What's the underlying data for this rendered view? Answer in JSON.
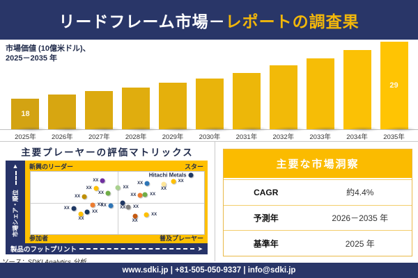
{
  "header": {
    "title_white": "リードフレーム市場－",
    "title_gold": "レポートの調査果"
  },
  "chart_data": [
    {
      "type": "bar",
      "title": "市場価値（10億米ドル）、2025－2035年",
      "subtitle_line1": "市場価値 (10億米ドル)、",
      "subtitle_line2": "2025－2035 年",
      "categories": [
        "2025年",
        "2026年",
        "2027年",
        "2028年",
        "2029年",
        "2030年",
        "2031年",
        "2032年",
        "2033年",
        "2034年",
        "2035年"
      ],
      "values": [
        18,
        18.8,
        19.5,
        20.1,
        21.1,
        21.9,
        23,
        24.4,
        25.8,
        27.4,
        29
      ],
      "bar_labels": [
        "18",
        "",
        "",
        "",
        "",
        "",
        "",
        "",
        "",
        "",
        "29"
      ],
      "labeled_values": {
        "2025年": 18,
        "2035年": 29
      },
      "ylabel": "市場価値 (10億米ドル)",
      "xlabel": "年",
      "grid": false,
      "legend": "none"
    },
    {
      "type": "scatter",
      "title": "主要プレーヤーの評価マトリックス",
      "x_axis": "製品のフットプリント",
      "y_axis": "市場シェア・順位",
      "quadrants": {
        "top_left": "新興のリーダー",
        "top_right": "スター",
        "bottom_left": "参加者",
        "bottom_right": "普及プレーヤー"
      },
      "highlight_company": "Hitachi Metals",
      "points": [
        {
          "x": 41.5,
          "y": 14.4,
          "color": "#7030A0",
          "label": "XX",
          "side": "left"
        },
        {
          "x": 37.6,
          "y": 26.7,
          "color": "#FFC000",
          "label": "XX",
          "side": "left"
        },
        {
          "x": 44.6,
          "y": 34.4,
          "color": "#70AD47",
          "label": "XX",
          "side": "left"
        },
        {
          "x": 31.0,
          "y": 40.0,
          "color": "#BF8F00",
          "label": "XX",
          "side": "left"
        },
        {
          "x": 50.4,
          "y": 25.6,
          "color": "#A9D18E",
          "label": "XX",
          "side": "right"
        },
        {
          "x": 35.7,
          "y": 53.3,
          "color": "#ED7D31",
          "label": "XX",
          "side": "right"
        },
        {
          "x": 46.1,
          "y": 54.4,
          "color": "#2E75B6",
          "label": "XX",
          "side": "left"
        },
        {
          "x": 24.8,
          "y": 58.9,
          "color": "#1F3864",
          "label": "XX",
          "side": "left"
        },
        {
          "x": 32.6,
          "y": 64.4,
          "color": "#17375E",
          "label": "XX",
          "side": "right"
        },
        {
          "x": 29.1,
          "y": 67.8,
          "color": "#FFC000",
          "label": "XX",
          "side": "below"
        },
        {
          "x": 92.2,
          "y": 5.6,
          "color": "#1F3864",
          "label": "Hitachi Metals",
          "side": "left",
          "bold": true
        },
        {
          "x": 67.1,
          "y": 18.9,
          "color": "#2E75B6",
          "label": "XX",
          "side": "left"
        },
        {
          "x": 82.2,
          "y": 15.6,
          "color": "#FFC000",
          "label": "XX",
          "side": "right"
        },
        {
          "x": 76.7,
          "y": 20.0,
          "color": "#FFE699",
          "label": "XX",
          "side": "below"
        },
        {
          "x": 63.2,
          "y": 37.8,
          "color": "#ED7D31",
          "label": "XX",
          "side": "left"
        },
        {
          "x": 65.9,
          "y": 36.7,
          "color": "#70AD47",
          "label": "XX",
          "side": "right"
        },
        {
          "x": 53.1,
          "y": 50.0,
          "color": "#203864",
          "label": "XX",
          "side": "below"
        },
        {
          "x": 56.2,
          "y": 56.7,
          "color": "#808080",
          "label": "XX",
          "side": "right"
        },
        {
          "x": 60.1,
          "y": 71.1,
          "color": "#C55A11",
          "label": "XX",
          "side": "below"
        },
        {
          "x": 66.7,
          "y": 68.9,
          "color": "#FFC000",
          "label": "XX",
          "side": "right"
        }
      ]
    }
  ],
  "insights": {
    "title": "主要な市場洞察",
    "rows": [
      {
        "label": "CAGR",
        "value": "約4.4%"
      },
      {
        "label": "予測年",
        "value": "2026－2035 年"
      },
      {
        "label": "基準年",
        "value": "2025 年"
      }
    ]
  },
  "source": "ソース：SDKI Analytics 分析",
  "footer": "www.sdki.jp | +81-505-050-9337 | info@sdki.jp",
  "icons": {
    "up_arrow": "▲",
    "right_arrow": "➤"
  },
  "colors": {
    "navy": "#293668",
    "matrix_gold": "#FFC000",
    "table_header_gold": "#FBBB00",
    "header_accent_gold": "#F2B70A",
    "bar_color_start": "#D3A312",
    "bar_color_end": "#FFC403"
  }
}
